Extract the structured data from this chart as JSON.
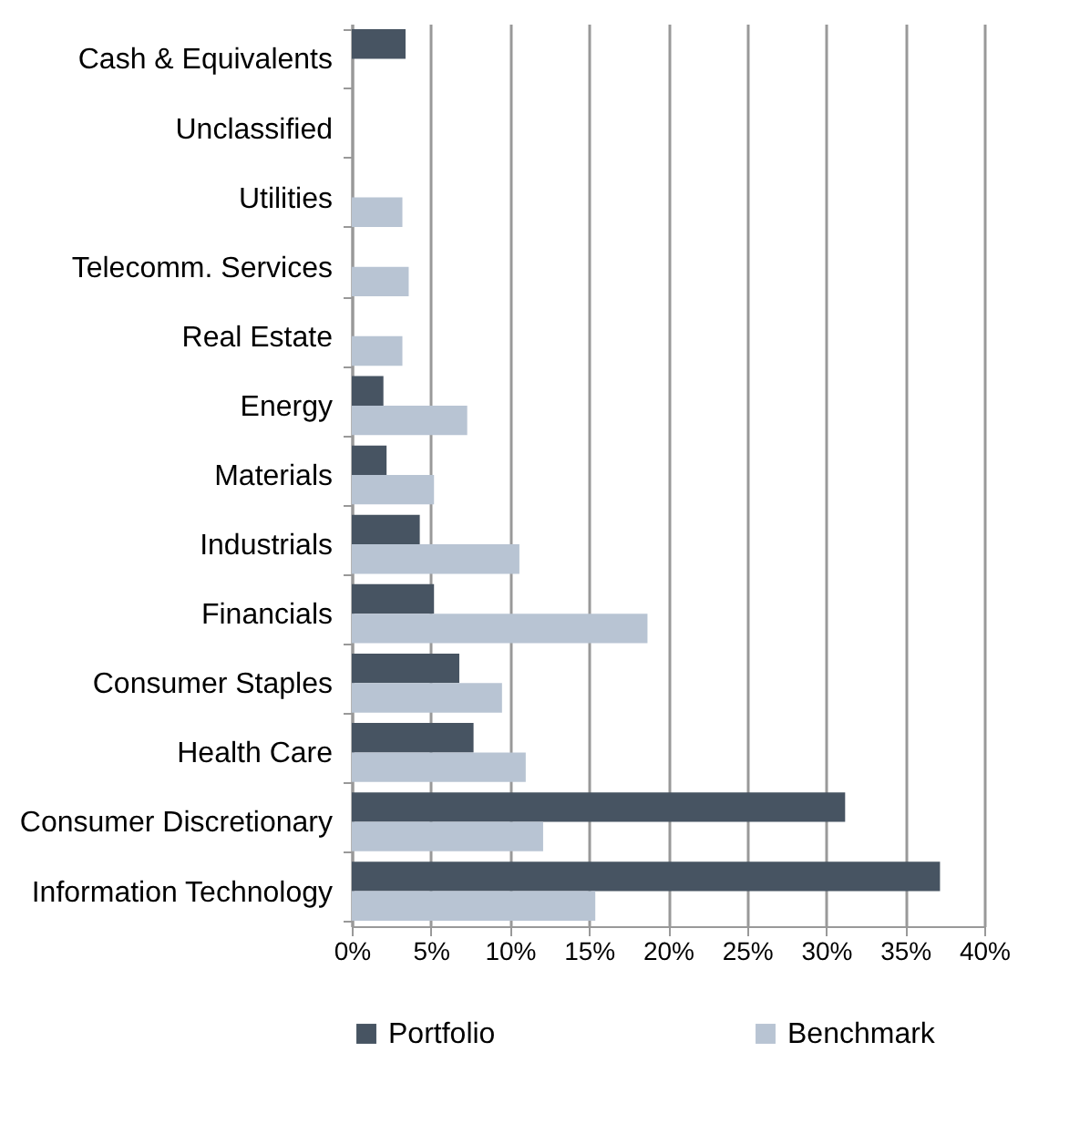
{
  "chart_data": {
    "type": "bar",
    "orientation": "horizontal",
    "categories": [
      "Cash & Equivalents",
      "Unclassified",
      "Utilities",
      "Telecomm. Services",
      "Real Estate",
      "Energy",
      "Materials",
      "Industrials",
      "Financials",
      "Consumer Staples",
      "Health Care",
      "Consumer Discretionary",
      "Information Technology"
    ],
    "series": [
      {
        "name": "Portfolio",
        "color": "#475462",
        "values": [
          3.4,
          null,
          null,
          null,
          null,
          2.0,
          2.2,
          4.3,
          5.2,
          6.8,
          7.7,
          31.2,
          37.2
        ]
      },
      {
        "name": "Benchmark",
        "color": "#b8c4d3",
        "values": [
          null,
          null,
          3.2,
          3.6,
          3.2,
          7.3,
          5.2,
          10.6,
          18.7,
          9.5,
          11.0,
          12.1,
          15.4
        ]
      }
    ],
    "xlim": [
      0,
      40
    ],
    "xticks": [
      {
        "value": 0,
        "label": "0%"
      },
      {
        "value": 5,
        "label": "5%"
      },
      {
        "value": 10,
        "label": "10%"
      },
      {
        "value": 15,
        "label": "15%"
      },
      {
        "value": 20,
        "label": "20%"
      },
      {
        "value": 25,
        "label": "25%"
      },
      {
        "value": 30,
        "label": "30%"
      },
      {
        "value": 35,
        "label": "35%"
      },
      {
        "value": 40,
        "label": "40%"
      }
    ],
    "grid": "x",
    "legend": "bottom"
  }
}
